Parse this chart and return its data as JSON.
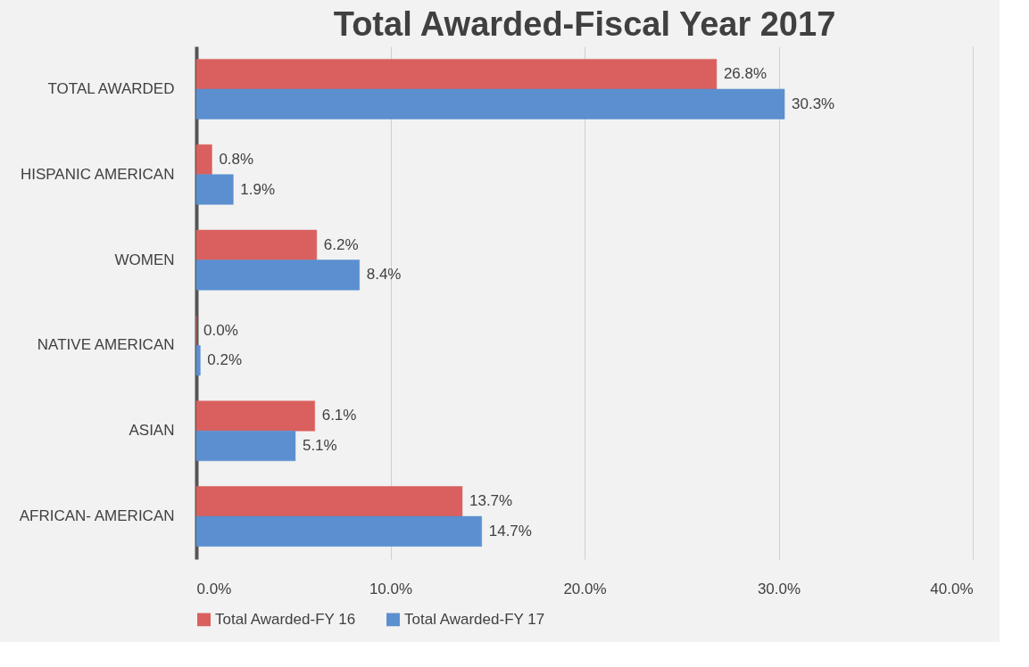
{
  "chart_data": {
    "type": "bar",
    "orientation": "horizontal",
    "title": "Total Awarded-Fiscal Year 2017",
    "categories": [
      "TOTAL AWARDED",
      "HISPANIC AMERICAN",
      "WOMEN",
      "NATIVE AMERICAN",
      "ASIAN",
      "AFRICAN- AMERICAN"
    ],
    "series": [
      {
        "name": "Total Awarded-FY 16",
        "color": "#d9605e",
        "values": [
          26.8,
          0.8,
          6.2,
          0.0,
          6.1,
          13.7
        ],
        "value_labels": [
          "26.8%",
          "0.8%",
          "6.2%",
          "0.0%",
          "6.1%",
          "13.7%"
        ]
      },
      {
        "name": "Total Awarded-FY 17",
        "color": "#5b8fd0",
        "values": [
          30.3,
          1.9,
          8.4,
          0.2,
          5.1,
          14.7
        ],
        "value_labels": [
          "30.3%",
          "1.9%",
          "8.4%",
          "0.2%",
          "5.1%",
          "14.7%"
        ]
      }
    ],
    "xlim": [
      0,
      40
    ],
    "xticks": [
      {
        "value": 0,
        "label": "0.0%"
      },
      {
        "value": 10,
        "label": "10.0%"
      },
      {
        "value": 20,
        "label": "20.0%"
      },
      {
        "value": 30,
        "label": "30.0%"
      },
      {
        "value": 40,
        "label": "40.0%"
      }
    ],
    "grid": "x",
    "legend": "bottom"
  }
}
